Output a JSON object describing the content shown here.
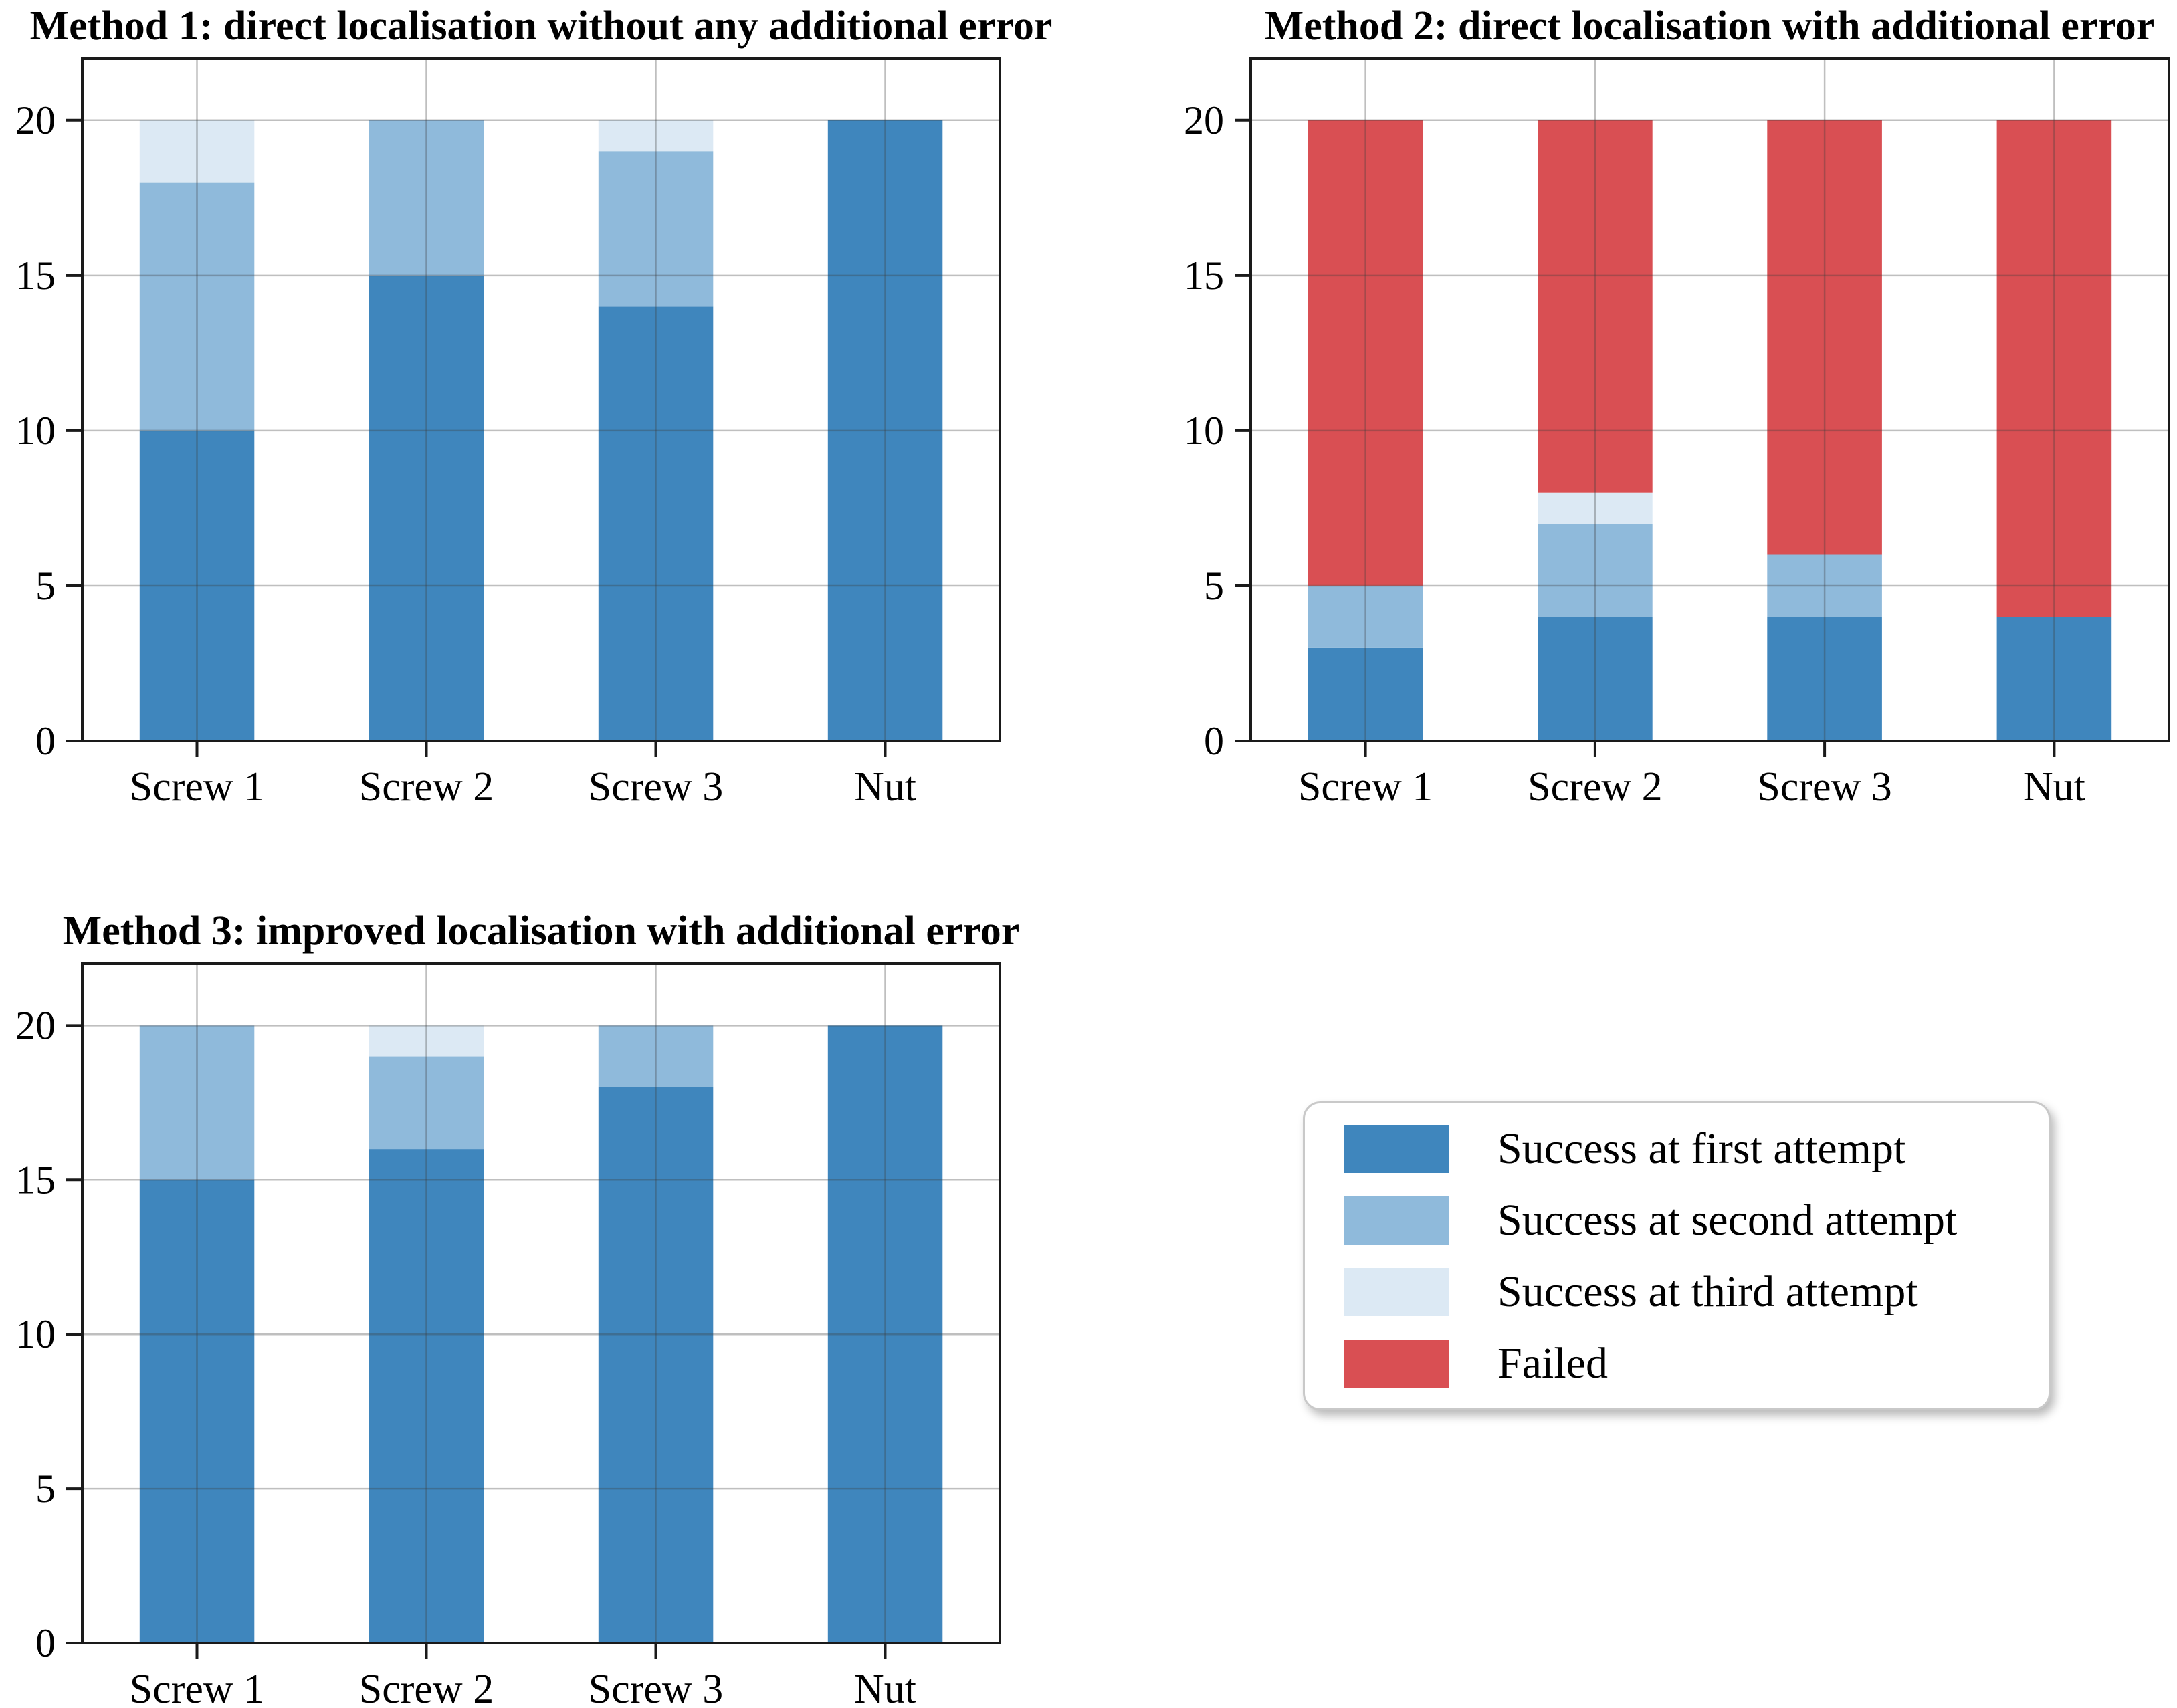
{
  "chart_data": [
    {
      "type": "bar",
      "stacked": true,
      "title": "Method 1: direct localisation without any additional error",
      "categories": [
        "Screw 1",
        "Screw 2",
        "Screw 3",
        "Nut"
      ],
      "series": [
        {
          "name": "Success at first attempt",
          "color": "#3f86bd",
          "values": [
            10,
            15,
            14,
            20
          ]
        },
        {
          "name": "Success at second attempt",
          "color": "#8fbadb",
          "values": [
            8,
            5,
            5,
            0
          ]
        },
        {
          "name": "Success at third attempt",
          "color": "#dce9f4",
          "values": [
            2,
            0,
            1,
            0
          ]
        },
        {
          "name": "Failed",
          "color": "#d94f53",
          "values": [
            0,
            0,
            0,
            0
          ]
        }
      ],
      "ylim": [
        0,
        22
      ],
      "yticks": [
        0,
        5,
        10,
        15,
        20
      ],
      "grid": true,
      "legend_position": "none"
    },
    {
      "type": "bar",
      "stacked": true,
      "title": "Method 2: direct localisation with additional error",
      "categories": [
        "Screw 1",
        "Screw 2",
        "Screw 3",
        "Nut"
      ],
      "series": [
        {
          "name": "Success at first attempt",
          "color": "#3f86bd",
          "values": [
            3,
            4,
            4,
            4
          ]
        },
        {
          "name": "Success at second attempt",
          "color": "#8fbadb",
          "values": [
            2,
            3,
            2,
            0
          ]
        },
        {
          "name": "Success at third attempt",
          "color": "#dce9f4",
          "values": [
            0,
            1,
            0,
            0
          ]
        },
        {
          "name": "Failed",
          "color": "#d94f53",
          "values": [
            15,
            12,
            14,
            16
          ]
        }
      ],
      "ylim": [
        0,
        22
      ],
      "yticks": [
        0,
        5,
        10,
        15,
        20
      ],
      "grid": true,
      "legend_position": "none"
    },
    {
      "type": "bar",
      "stacked": true,
      "title": "Method 3: improved localisation with additional error",
      "categories": [
        "Screw 1",
        "Screw 2",
        "Screw 3",
        "Nut"
      ],
      "series": [
        {
          "name": "Success at first attempt",
          "color": "#3f86bd",
          "values": [
            15,
            16,
            18,
            20
          ]
        },
        {
          "name": "Success at second attempt",
          "color": "#8fbadb",
          "values": [
            5,
            3,
            2,
            0
          ]
        },
        {
          "name": "Success at third attempt",
          "color": "#dce9f4",
          "values": [
            0,
            1,
            0,
            0
          ]
        },
        {
          "name": "Failed",
          "color": "#d94f53",
          "values": [
            0,
            0,
            0,
            0
          ]
        }
      ],
      "ylim": [
        0,
        22
      ],
      "yticks": [
        0,
        5,
        10,
        15,
        20
      ],
      "grid": true,
      "legend_position": "none"
    }
  ],
  "legend": {
    "entries": [
      {
        "label": "Success at first attempt",
        "color": "#3f86bd"
      },
      {
        "label": "Success at second attempt",
        "color": "#8fbadb"
      },
      {
        "label": "Success at third attempt",
        "color": "#dce9f4"
      },
      {
        "label": "Failed",
        "color": "#d94f53"
      }
    ]
  },
  "style": {
    "grid_color": "rgba(60,60,60,0.33)",
    "spine_color": "#1a1a1a",
    "tick_color": "#1a1a1a"
  }
}
